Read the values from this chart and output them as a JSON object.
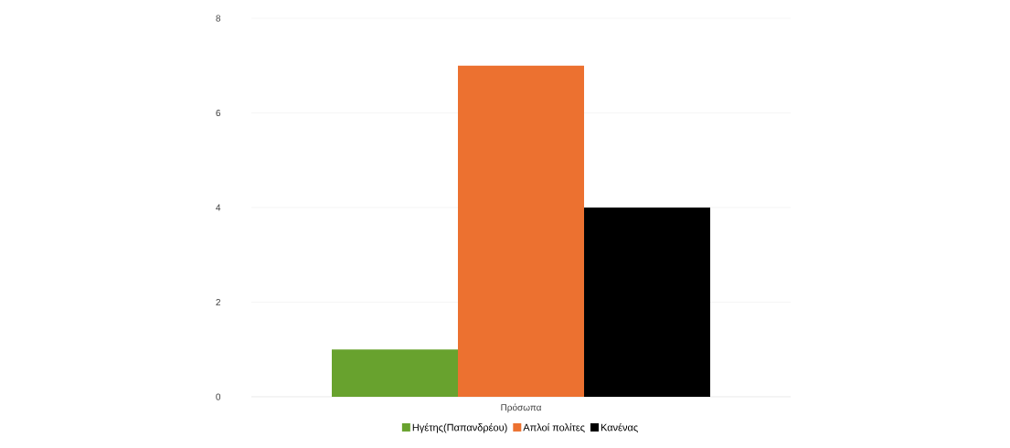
{
  "chart_data": {
    "type": "bar",
    "categories": [
      "Πρόσωπα"
    ],
    "series": [
      {
        "name": "Ηγέτης(Παπανδρέου)",
        "color": "#68a22e",
        "values": [
          1
        ]
      },
      {
        "name": "Απλοί πολίτες",
        "color": "#ec7130",
        "values": [
          7
        ]
      },
      {
        "name": "Κανένας",
        "color": "#000000",
        "values": [
          4
        ]
      }
    ],
    "ylim": [
      0,
      8
    ],
    "yticks": [
      0,
      2,
      4,
      6,
      8
    ],
    "grid": "y",
    "legend": "bottom"
  }
}
